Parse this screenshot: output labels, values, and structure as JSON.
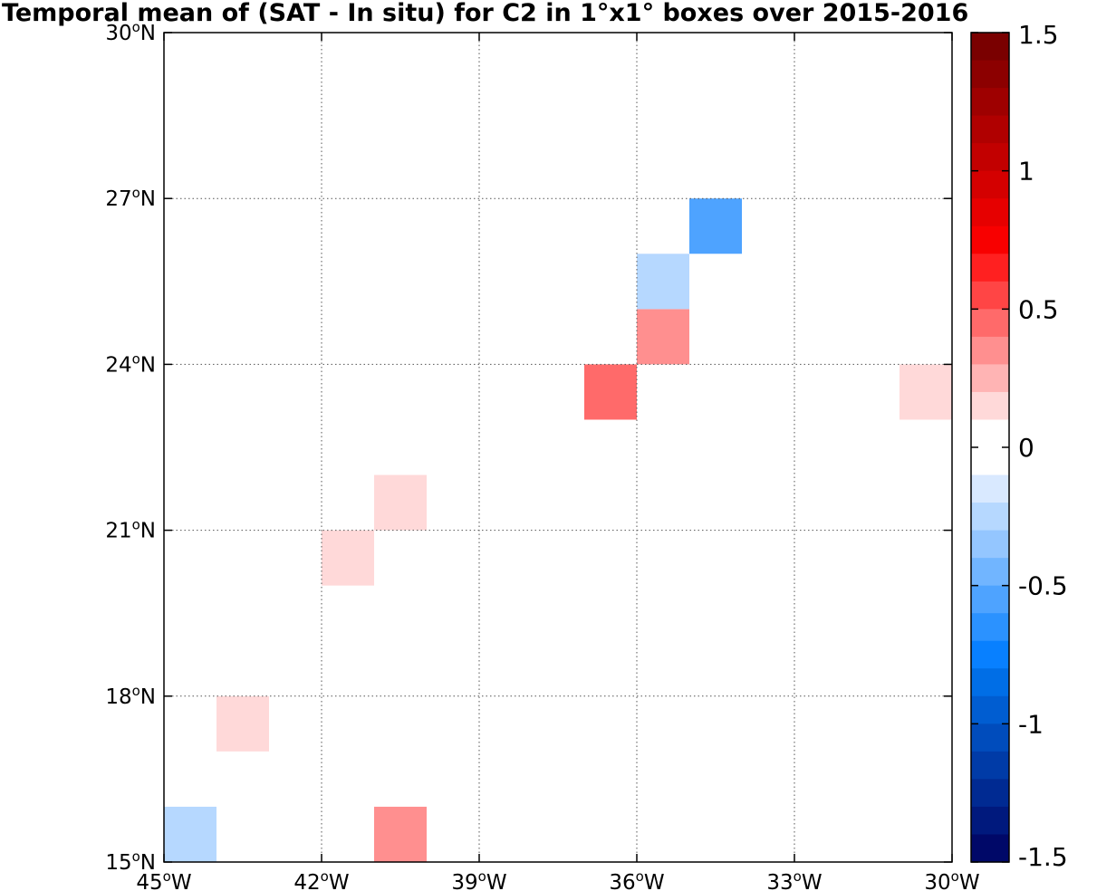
{
  "chart_data": {
    "type": "heatmap",
    "title": "Temporal mean of (SAT - In situ) for C2 in 1°x1° boxes over 2015-2016",
    "x_axis": {
      "range": [
        -45,
        -30
      ],
      "ticks": [
        -45,
        -42,
        -39,
        -36,
        -33,
        -30
      ],
      "tick_labels": [
        "45",
        "42",
        "39",
        "36",
        "33",
        "30"
      ],
      "hemisphere": "W"
    },
    "y_axis": {
      "range": [
        15,
        30
      ],
      "ticks": [
        15,
        18,
        21,
        24,
        27,
        30
      ],
      "tick_labels": [
        "15",
        "18",
        "21",
        "24",
        "27",
        "30"
      ],
      "hemisphere": "N"
    },
    "degree_symbol": "o",
    "grid": true,
    "cells": [
      {
        "lon": -45,
        "lat": 15,
        "value": -0.2
      },
      {
        "lon": -41,
        "lat": 15,
        "value": 0.3
      },
      {
        "lon": -44,
        "lat": 17,
        "value": 0.15
      },
      {
        "lon": -42,
        "lat": 20,
        "value": 0.15
      },
      {
        "lon": -41,
        "lat": 21,
        "value": 0.15
      },
      {
        "lon": -37,
        "lat": 23,
        "value": 0.45
      },
      {
        "lon": -36,
        "lat": 24,
        "value": 0.3
      },
      {
        "lon": -36,
        "lat": 25,
        "value": -0.2
      },
      {
        "lon": -35,
        "lat": 26,
        "value": -0.55
      },
      {
        "lon": -31,
        "lat": 23,
        "value": 0.15
      }
    ],
    "colorbar": {
      "range": [
        -1.5,
        1.5
      ],
      "tick_values": [
        1.5,
        1,
        0.5,
        0,
        -0.5,
        -1,
        -1.5
      ],
      "tick_labels": [
        "1.5",
        "1",
        "0.5",
        "0",
        "-0.5",
        "-1",
        "-1.5"
      ],
      "colors_top_to_bottom": [
        "#7a0000",
        "#8c0000",
        "#9e0000",
        "#b00000",
        "#c20000",
        "#d40000",
        "#e60000",
        "#f80000",
        "#ff2020",
        "#ff4545",
        "#ff6a6a",
        "#ff8f8f",
        "#ffb4b4",
        "#ffd9d9",
        "#ffffff",
        "#ffffff",
        "#d9e9ff",
        "#b6d8ff",
        "#94c6ff",
        "#71b5ff",
        "#4ea3ff",
        "#2b92ff",
        "#0880ff",
        "#006ee6",
        "#005dd1",
        "#004cbc",
        "#003ba7",
        "#002a92",
        "#00197d",
        "#000868"
      ]
    }
  }
}
